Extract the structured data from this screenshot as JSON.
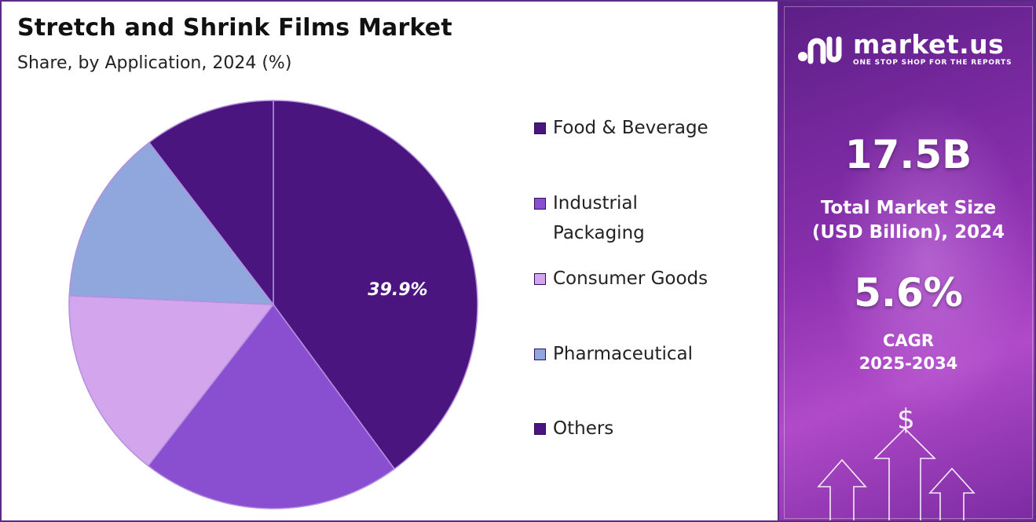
{
  "header": {
    "title": "Stretch and Shrink Films Market",
    "subtitle": "Share, by Application, 2024 (%)"
  },
  "chart_data": {
    "type": "pie",
    "title": "Stretch and Shrink Films Market",
    "subtitle": "Share, by Application, 2024 (%)",
    "start_angle_deg": 0,
    "direction": "clockwise",
    "slices": [
      {
        "label": "Food & Beverage",
        "value": 39.9,
        "color": "#4b1580",
        "data_label": "39.9%"
      },
      {
        "label": "Industrial Packaging",
        "value": 20.6,
        "color": "#8a4fd0",
        "data_label": ""
      },
      {
        "label": "Consumer Goods",
        "value": 15.2,
        "color": "#d3a5ec",
        "data_label": ""
      },
      {
        "label": "Pharmaceutical",
        "value": 13.9,
        "color": "#8fa7dc",
        "data_label": ""
      },
      {
        "label": "Others",
        "value": 10.4,
        "color": "#4b1580",
        "data_label": ""
      }
    ]
  },
  "legend": {
    "items": [
      {
        "label": "Food & Beverage",
        "color": "#4b1580"
      },
      {
        "label": "Industrial Packaging",
        "color": "#8a4fd0"
      },
      {
        "label": "Consumer Goods",
        "color": "#d3a5ec"
      },
      {
        "label": "Pharmaceutical",
        "color": "#8fa7dc"
      },
      {
        "label": "Others",
        "color": "#4b1580"
      }
    ]
  },
  "sidebar": {
    "brand": "market.us",
    "tagline": "ONE STOP SHOP FOR THE REPORTS",
    "market_size_value": "17.5B",
    "market_size_label_1": "Total Market Size",
    "market_size_label_2": "(USD Billion), 2024",
    "cagr_value": "5.6%",
    "cagr_label_1": "CAGR",
    "cagr_label_2": "2025-2034",
    "dollar_symbol": "$",
    "colors": {
      "gradient_start": "#5c1f86",
      "gradient_mid": "#b04ac8"
    }
  }
}
